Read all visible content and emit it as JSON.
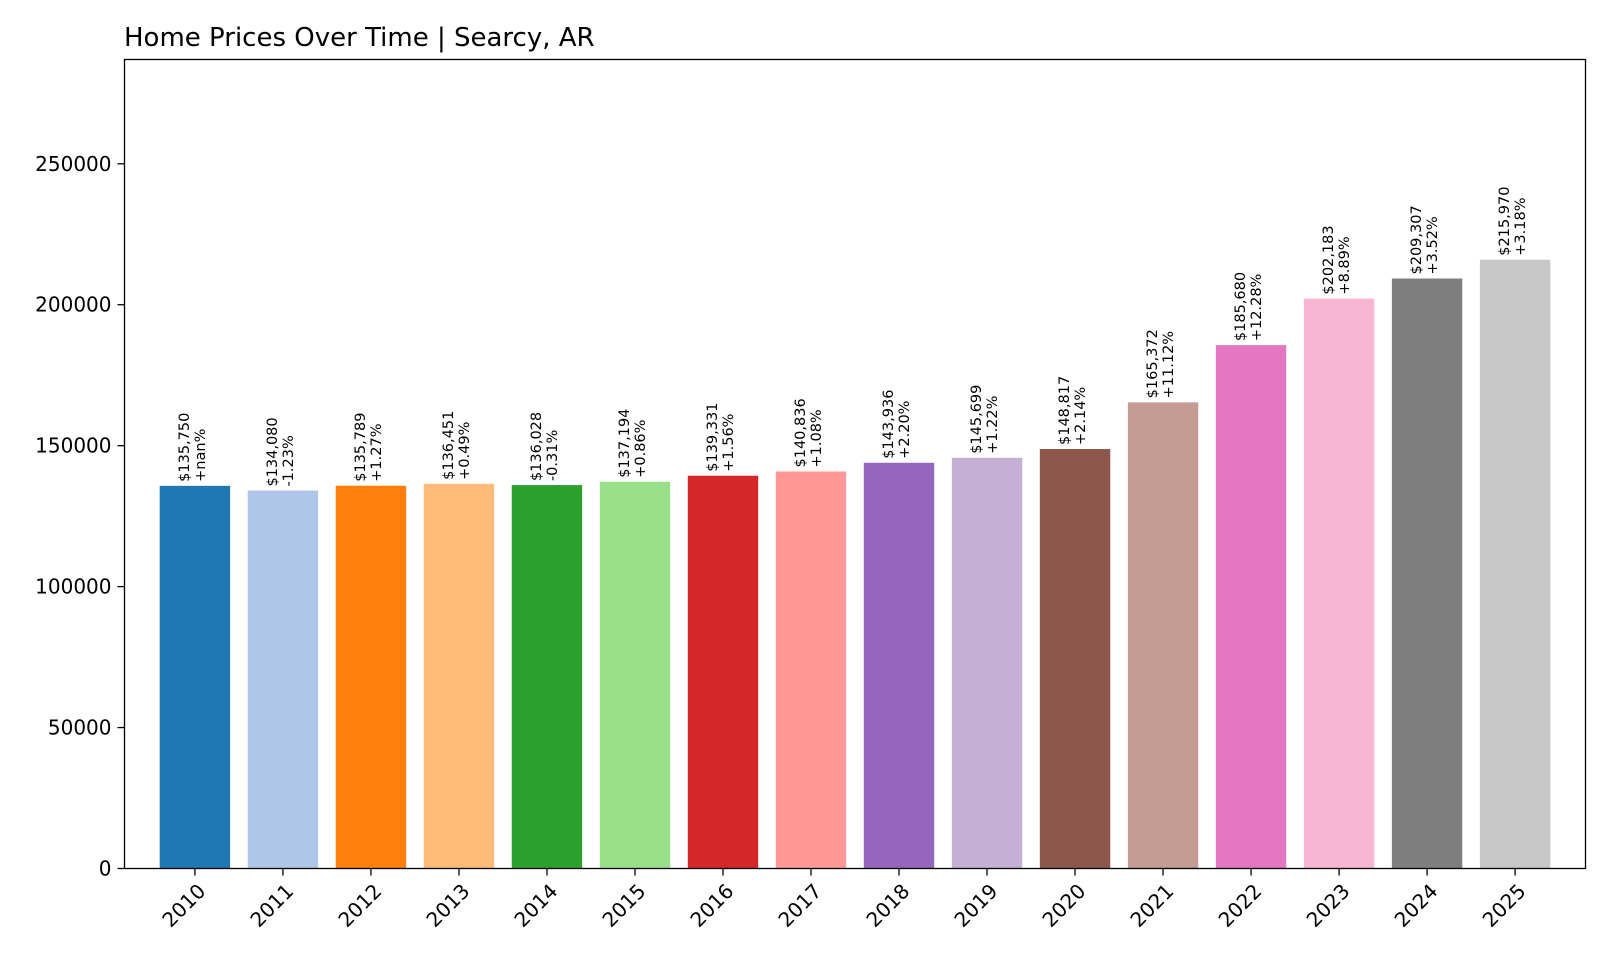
{
  "chart_data": {
    "type": "bar",
    "title": "Home Prices Over Time | Searcy, AR",
    "xlabel": "",
    "ylabel": "",
    "ylim": [
      0,
      287000
    ],
    "yticks": [
      0,
      50000,
      100000,
      150000,
      200000,
      250000
    ],
    "grid": false,
    "legend": "none",
    "categories": [
      "2010",
      "2011",
      "2012",
      "2013",
      "2014",
      "2015",
      "2016",
      "2017",
      "2018",
      "2019",
      "2020",
      "2021",
      "2022",
      "2023",
      "2024",
      "2025"
    ],
    "values": [
      135750,
      134080,
      135789,
      136451,
      136028,
      137194,
      139331,
      140836,
      143936,
      145699,
      148817,
      165372,
      185680,
      202183,
      209307,
      215970
    ],
    "value_labels": [
      "$135,750",
      "$134,080",
      "$135,789",
      "$136,451",
      "$136,028",
      "$137,194",
      "$139,331",
      "$140,836",
      "$143,936",
      "$145,699",
      "$148,817",
      "$165,372",
      "$185,680",
      "$202,183",
      "$209,307",
      "$215,970"
    ],
    "change_labels": [
      "+nan%",
      "-1.23%",
      "+1.27%",
      "+0.49%",
      "-0.31%",
      "+0.86%",
      "+1.56%",
      "+1.08%",
      "+2.20%",
      "+1.22%",
      "+2.14%",
      "+11.12%",
      "+12.28%",
      "+8.89%",
      "+3.52%",
      "+3.18%"
    ],
    "colors": [
      "#1f77b4",
      "#aec7e8",
      "#ff7f0e",
      "#ffbb78",
      "#2ca02c",
      "#98df8a",
      "#d62728",
      "#ff9896",
      "#9467bd",
      "#c5b0d5",
      "#8c564b",
      "#c49c94",
      "#e377c2",
      "#f7b6d2",
      "#7f7f7f",
      "#c7c7c7"
    ]
  }
}
